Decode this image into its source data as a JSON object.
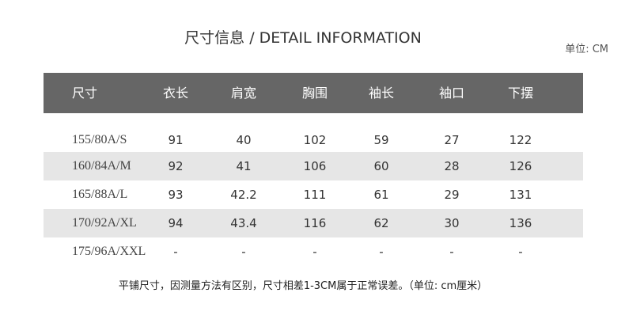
{
  "title": "尺寸信息 / DETAIL INFORMATION",
  "unit": "单位: CM",
  "table": {
    "headers": [
      "尺寸",
      "衣长",
      "肩宽",
      "胸围",
      "袖长",
      "袖口",
      "下摆"
    ],
    "rows": [
      [
        "155/80A/S",
        "91",
        "40",
        "102",
        "59",
        "27",
        "122"
      ],
      [
        "160/84A/M",
        "92",
        "41",
        "106",
        "60",
        "28",
        "126"
      ],
      [
        "165/88A/L",
        "93",
        "42.2",
        "111",
        "61",
        "29",
        "131"
      ],
      [
        "170/92A/XL",
        "94",
        "43.4",
        "116",
        "62",
        "30",
        "136"
      ],
      [
        "175/96A/XXL",
        "-",
        "-",
        "-",
        "-",
        "-",
        "-"
      ]
    ]
  },
  "note": "平铺尺寸，因测量方法有区别，尺寸相差1-3CM属于正常误差。（单位: cm厘米）",
  "colors": {
    "header_bg": "#666666",
    "alt_row_bg": "#e6e6e6"
  }
}
